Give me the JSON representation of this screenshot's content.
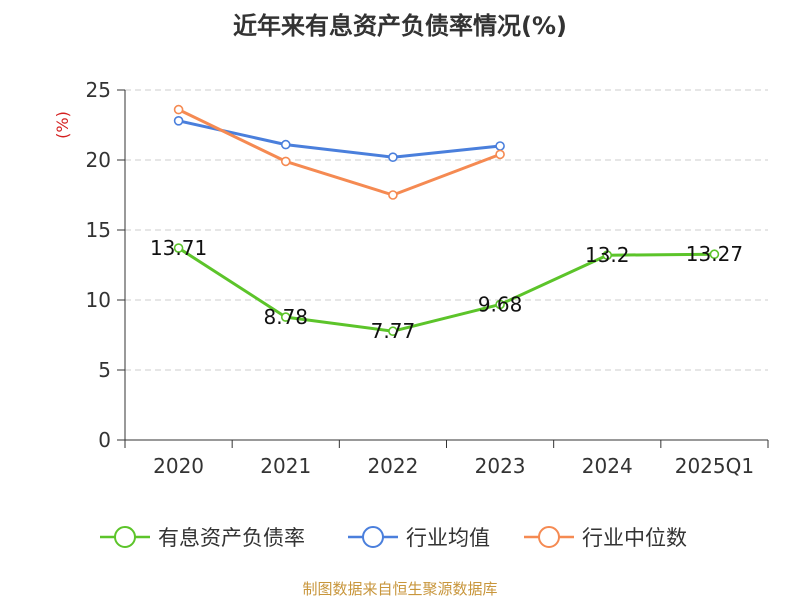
{
  "title": "近年来有息资产负债率情况(%)",
  "source": "制图数据来自恒生聚源数据库",
  "colors": {
    "primary": "#5cc42a",
    "industry_avg": "#4a7fdc",
    "industry_median": "#f58a52",
    "unit": "#d42020"
  },
  "chart_data": {
    "type": "line",
    "title": "近年来有息资产负债率情况(%)",
    "ylabel": "(%)",
    "xlabel": "",
    "categories": [
      "2020",
      "2021",
      "2022",
      "2023",
      "2024",
      "2025Q1"
    ],
    "ylim": [
      0,
      25
    ],
    "yticks": [
      0,
      5,
      10,
      15,
      20,
      25
    ],
    "grid": true,
    "legend_position": "bottom",
    "series": [
      {
        "name": "有息资产负债率",
        "values": [
          13.71,
          8.78,
          7.77,
          9.68,
          13.2,
          13.27
        ],
        "labels": [
          "13.71",
          "8.78",
          "7.77",
          "9.68",
          "13.2",
          "13.27"
        ],
        "color": "#5cc42a"
      },
      {
        "name": "行业均值",
        "values": [
          22.8,
          21.1,
          20.2,
          21.0,
          null,
          null
        ],
        "color": "#4a7fdc"
      },
      {
        "name": "行业中位数",
        "values": [
          23.6,
          19.9,
          17.5,
          20.4,
          null,
          null
        ],
        "color": "#f58a52"
      }
    ]
  }
}
